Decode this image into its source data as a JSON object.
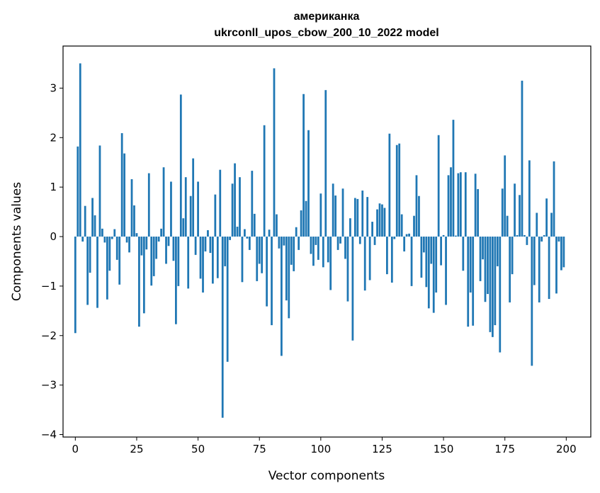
{
  "chart_data": {
    "type": "bar",
    "title_line1": "американка",
    "title_line2": "ukrconll_upos_cbow_200_10_2022 model",
    "xlabel": "Vector components",
    "ylabel": "Components values",
    "xlim": [
      -5,
      210
    ],
    "ylim": [
      -4.05,
      3.85
    ],
    "xticks": [
      0,
      25,
      50,
      75,
      100,
      125,
      150,
      175,
      200
    ],
    "xtick_labels": [
      "0",
      "25",
      "50",
      "75",
      "100",
      "125",
      "150",
      "175",
      "200"
    ],
    "yticks": [
      -4,
      -3,
      -2,
      -1,
      0,
      1,
      2,
      3
    ],
    "ytick_labels": [
      "−4",
      "−3",
      "−2",
      "−1",
      "0",
      "1",
      "2",
      "3"
    ],
    "bar_color": "#1f77b4",
    "grid": false,
    "values": [
      -1.95,
      1.82,
      3.5,
      -0.1,
      0.62,
      -1.38,
      -0.73,
      0.78,
      0.43,
      -1.44,
      1.84,
      0.16,
      -0.12,
      -1.27,
      -0.69,
      -0.05,
      0.15,
      -0.47,
      -0.97,
      2.09,
      1.68,
      -0.12,
      -0.32,
      1.16,
      0.63,
      0.07,
      -1.82,
      -0.38,
      -1.55,
      -0.26,
      1.28,
      -0.99,
      -0.8,
      -0.45,
      -0.1,
      0.16,
      1.4,
      -0.55,
      -0.19,
      1.11,
      -0.49,
      -1.77,
      -1.0,
      2.87,
      0.37,
      1.2,
      -1.05,
      0.82,
      1.58,
      -0.37,
      1.11,
      -0.85,
      -1.13,
      -0.3,
      0.13,
      -0.33,
      -0.95,
      0.85,
      -0.84,
      1.35,
      -3.66,
      -0.6,
      -2.53,
      -0.07,
      1.07,
      1.48,
      0.2,
      1.2,
      -0.92,
      0.15,
      -0.04,
      -0.27,
      1.33,
      0.46,
      -0.9,
      -0.55,
      -0.74,
      2.25,
      -1.41,
      0.14,
      -1.79,
      3.4,
      0.45,
      -0.24,
      -2.41,
      -0.18,
      -1.29,
      -1.65,
      -0.57,
      -0.7,
      0.19,
      -0.27,
      0.53,
      2.88,
      0.72,
      2.15,
      -0.35,
      -0.59,
      -0.17,
      -0.47,
      0.87,
      -0.62,
      2.96,
      -0.52,
      -1.08,
      1.07,
      0.83,
      -0.27,
      -0.14,
      0.97,
      -0.45,
      -1.31,
      0.37,
      -2.1,
      0.78,
      0.76,
      -0.15,
      0.93,
      -1.09,
      0.8,
      -0.88,
      0.3,
      -0.17,
      0.55,
      0.67,
      0.65,
      0.58,
      -0.76,
      2.08,
      -0.93,
      -0.05,
      1.85,
      1.88,
      0.45,
      -0.3,
      0.05,
      0.06,
      -1.0,
      0.42,
      1.24,
      0.82,
      -0.83,
      -0.32,
      -1.02,
      -1.45,
      -0.55,
      -1.54,
      -1.13,
      2.05,
      -0.58,
      0.03,
      -1.38,
      1.24,
      1.4,
      2.36,
      0.02,
      1.28,
      1.3,
      -0.69,
      1.3,
      -1.82,
      -1.13,
      -1.8,
      1.27,
      0.96,
      -0.9,
      -0.46,
      -1.32,
      -1.16,
      -1.93,
      -2.03,
      -1.79,
      -0.6,
      -2.34,
      0.97,
      1.64,
      0.42,
      -1.33,
      -0.76,
      1.07,
      0.03,
      0.84,
      3.15,
      0.03,
      -0.17,
      1.54,
      -2.61,
      -0.98,
      0.48,
      -1.33,
      -0.1,
      0.03,
      0.77,
      -1.26,
      0.48,
      1.52,
      -1.15,
      -0.1,
      -0.68,
      -0.62
    ]
  }
}
